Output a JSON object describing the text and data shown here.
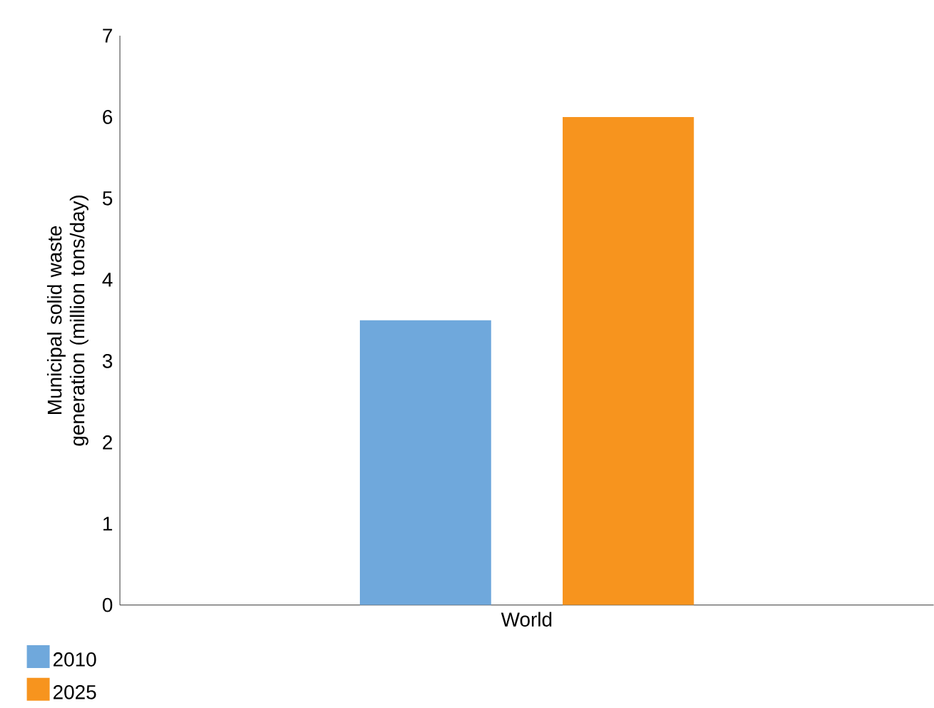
{
  "chart_data": {
    "type": "bar",
    "ylabel": "Municipal solid waste generation (million tons/day)",
    "categories": [
      "World"
    ],
    "series": [
      {
        "name": "2010",
        "color": "#6fa8dc",
        "values": [
          3.5
        ]
      },
      {
        "name": "2025",
        "color": "#f7941e",
        "values": [
          6.0
        ]
      }
    ],
    "ylim": [
      0,
      7
    ],
    "yticks": [
      0,
      1,
      2,
      3,
      4,
      5,
      6,
      7
    ],
    "grid": false,
    "legend": "bottom left"
  }
}
